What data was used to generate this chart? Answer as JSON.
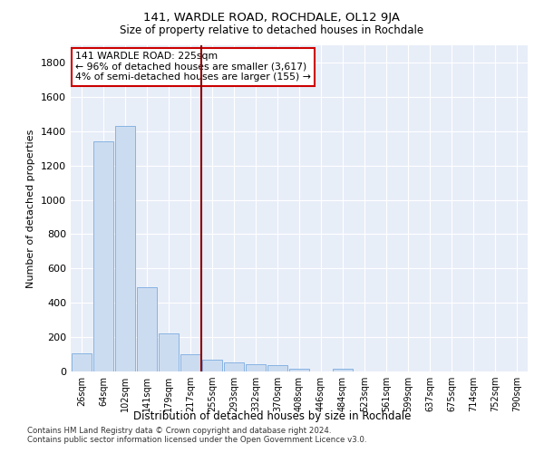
{
  "title": "141, WARDLE ROAD, ROCHDALE, OL12 9JA",
  "subtitle": "Size of property relative to detached houses in Rochdale",
  "xlabel": "Distribution of detached houses by size in Rochdale",
  "ylabel": "Number of detached properties",
  "bar_color": "#ccdcf0",
  "bar_edge_color": "#7aabe0",
  "vline_color": "#8b0000",
  "categories": [
    "26sqm",
    "64sqm",
    "102sqm",
    "141sqm",
    "179sqm",
    "217sqm",
    "255sqm",
    "293sqm",
    "332sqm",
    "370sqm",
    "408sqm",
    "446sqm",
    "484sqm",
    "523sqm",
    "561sqm",
    "599sqm",
    "637sqm",
    "675sqm",
    "714sqm",
    "752sqm",
    "790sqm"
  ],
  "values": [
    105,
    1340,
    1430,
    490,
    220,
    100,
    70,
    55,
    40,
    35,
    18,
    0,
    18,
    0,
    0,
    0,
    0,
    0,
    0,
    0,
    0
  ],
  "background_color": "#e8eef8",
  "grid_color": "#ffffff",
  "annotation_text": "141 WARDLE ROAD: 225sqm\n← 96% of detached houses are smaller (3,617)\n4% of semi-detached houses are larger (155) →",
  "annotation_box_color": "#ffffff",
  "annotation_box_edge": "#cc0000",
  "footer_text": "Contains HM Land Registry data © Crown copyright and database right 2024.\nContains public sector information licensed under the Open Government Licence v3.0.",
  "ylim": [
    0,
    1900
  ],
  "yticks": [
    0,
    200,
    400,
    600,
    800,
    1000,
    1200,
    1400,
    1600,
    1800
  ],
  "vline_pos": 5.5
}
